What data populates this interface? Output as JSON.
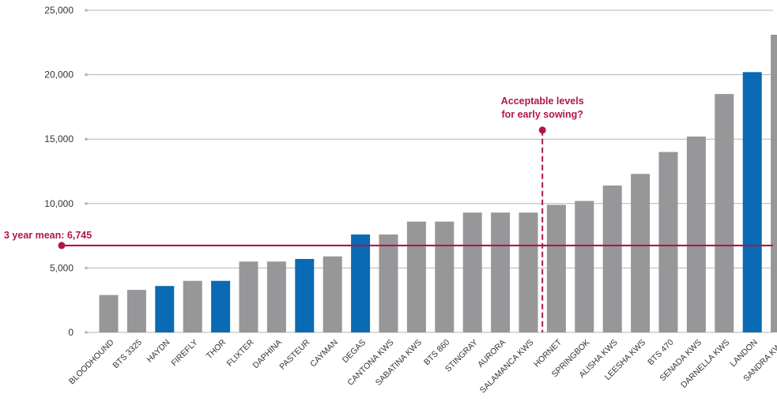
{
  "chart_data": {
    "type": "bar",
    "categories": [
      "BLOODHOUND",
      "BTS 3325",
      "HAYDN",
      "FIREFLY",
      "THOR",
      "FLIXTER",
      "DAPHINA",
      "PASTEUR",
      "CAYMAN",
      "DEGAS",
      "CANTONA KWS",
      "SABATINA KWS",
      "BTS 860",
      "STINGRAY",
      "AURORA",
      "SALAMANCA KWS",
      "HORNET",
      "SPRINGBOK",
      "ALISHA KWS",
      "LEESHA KWS",
      "BTS 470",
      "SENADA KWS",
      "DARNELLA KWS",
      "LANDON",
      "SANDRA KWS"
    ],
    "values": [
      2900,
      3300,
      3600,
      4000,
      4000,
      5500,
      5500,
      5700,
      5900,
      7600,
      7600,
      8600,
      8600,
      9300,
      9300,
      9300,
      9900,
      10200,
      11400,
      12300,
      14000,
      15200,
      18500,
      20200,
      23100
    ],
    "highlighted": [
      "HAYDN",
      "THOR",
      "PASTEUR",
      "DEGAS",
      "LANDON"
    ],
    "ylim": [
      0,
      25000
    ],
    "yticks": [
      "0",
      "5,000",
      "10,000",
      "15,000",
      "20,000",
      "25,000"
    ],
    "ytick_values": [
      0,
      5000,
      10000,
      15000,
      20000,
      25000
    ],
    "grid": true,
    "colors": {
      "bar": "#97979a",
      "highlight": "#0a6ab3",
      "annotation": "#b0164b",
      "grid": "#b5b5b5"
    },
    "mean_line": {
      "label": "3 year mean: 6,745",
      "value": 6745
    },
    "divider": {
      "label_line1": "Acceptable levels",
      "label_line2": "for early sowing?",
      "after_category": "SALAMANCA KWS",
      "top_value": 15700
    }
  }
}
